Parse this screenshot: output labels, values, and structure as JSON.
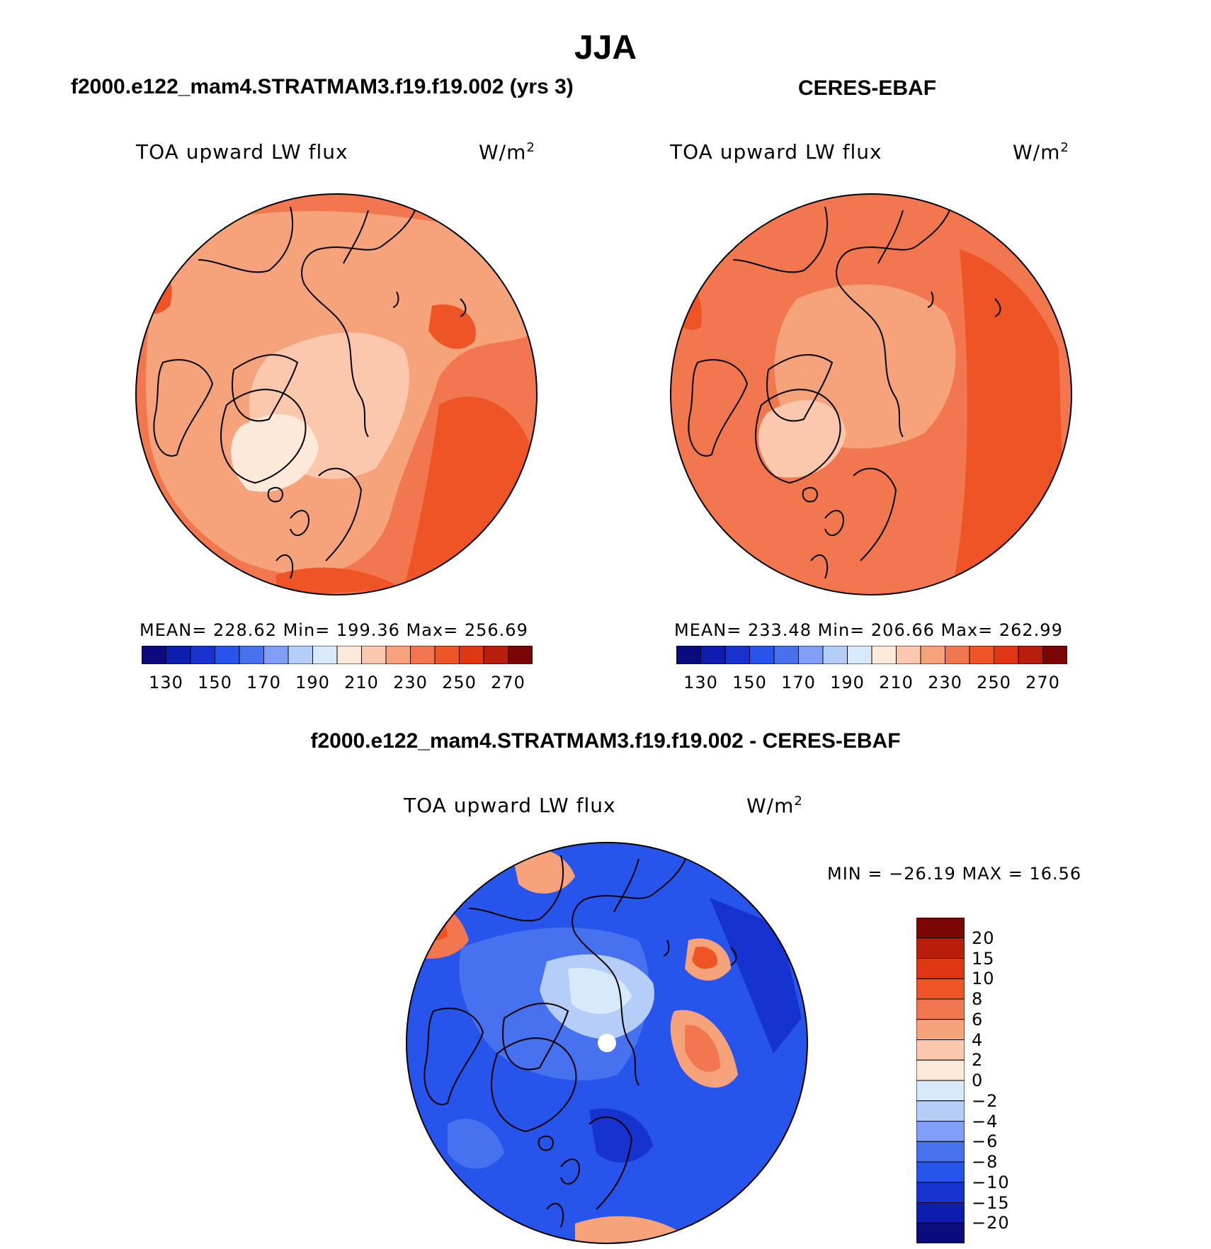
{
  "title": "JJA",
  "panels": [
    {
      "title": "f2000.e122_mam4.STRATMAM3.f19.f19.002 (yrs 3)",
      "variable": "TOA upward LW flux",
      "units_base": "W/m",
      "units_exp": "2",
      "stats": "MEAN= 228.62   Min= 199.36   Max= 256.69"
    },
    {
      "title": "CERES-EBAF",
      "variable": "TOA upward LW flux",
      "units_base": "W/m",
      "units_exp": "2",
      "stats": "MEAN= 233.48   Min= 206.66   Max= 262.99"
    }
  ],
  "colorbar_main": {
    "colors": [
      "#0c0b7d",
      "#0d1dae",
      "#1632cf",
      "#2754ea",
      "#4671ef",
      "#7f9ef5",
      "#b5cdf9",
      "#d8e9fb",
      "#fde9da",
      "#fbc7ad",
      "#f6a27b",
      "#f2774e",
      "#ee5425",
      "#e03614",
      "#b91d0c",
      "#7b0606"
    ],
    "labels": [
      "130",
      "150",
      "170",
      "190",
      "210",
      "230",
      "250",
      "270"
    ]
  },
  "difference": {
    "title": "f2000.e122_mam4.STRATMAM3.f19.f19.002 - CERES-EBAF",
    "variable": "TOA upward LW flux",
    "units_base": "W/m",
    "units_exp": "2",
    "minmax": "MIN = −26.19 MAX =   16.56",
    "colorbar": {
      "colors": [
        "#7b0606",
        "#b91d0c",
        "#e03614",
        "#ee5425",
        "#f2774e",
        "#f6a27b",
        "#fbc7ad",
        "#fde9da",
        "#d8e9fb",
        "#b5cdf9",
        "#7f9ef5",
        "#4671ef",
        "#2754ea",
        "#1632cf",
        "#0d1dae",
        "#0c0b7d"
      ],
      "labels": [
        "20",
        "15",
        "10",
        "8",
        "6",
        "4",
        "2",
        "0",
        "−2",
        "−4",
        "−6",
        "−8",
        "−10",
        "−15",
        "−20"
      ]
    }
  }
}
